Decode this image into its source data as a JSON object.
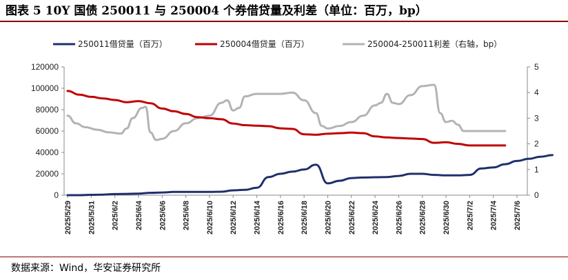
{
  "header": {
    "title": "图表 5 10Y 国债 250011 与 250004 个券借贷量及利差（单位：百万，bp）"
  },
  "footer": {
    "source": "数据来源：Wind，华安证券研究所"
  },
  "colors": {
    "s250011": "#1f2f6b",
    "s250004": "#c00000",
    "spread": "#b3b3b3",
    "rule": "#8b0000"
  },
  "chart_data": {
    "type": "line",
    "x_ticks": [
      "2025/5/29",
      "2025/5/31",
      "2025/6/2",
      "2025/6/4",
      "2025/6/6",
      "2025/6/8",
      "2025/6/10",
      "2025/6/12",
      "2025/6/14",
      "2025/6/16",
      "2025/6/18",
      "2025/6/20",
      "2025/6/22",
      "2025/6/24",
      "2025/6/26",
      "2025/6/28",
      "2025/6/30",
      "2025/7/2",
      "2025/7/4",
      "2025/7/6"
    ],
    "y_left": {
      "ticks": [
        0,
        20000,
        40000,
        60000,
        80000,
        100000,
        120000
      ],
      "ylim": [
        0,
        120000
      ]
    },
    "y_right": {
      "ticks": [
        0,
        1,
        2,
        3,
        4,
        5
      ],
      "ylim": [
        0,
        5
      ]
    },
    "grid": false,
    "legend_position": "top",
    "series": [
      {
        "name": "250011借贷量（百万）",
        "axis": "left",
        "color_key": "s250011",
        "points": [
          [
            0,
            0
          ],
          [
            1,
            0
          ],
          [
            2,
            300
          ],
          [
            3,
            500
          ],
          [
            4,
            1000
          ],
          [
            5,
            1200
          ],
          [
            6,
            1500
          ],
          [
            7,
            2200
          ],
          [
            8,
            2500
          ],
          [
            9,
            3000
          ],
          [
            10,
            3000
          ],
          [
            11,
            3000
          ],
          [
            12,
            3000
          ],
          [
            13,
            3200
          ],
          [
            14,
            4500
          ],
          [
            15,
            5000
          ],
          [
            16,
            7000
          ],
          [
            17,
            17000
          ],
          [
            18,
            20000
          ],
          [
            19,
            22000
          ],
          [
            20,
            24000
          ],
          [
            21,
            28500
          ],
          [
            22,
            11000
          ],
          [
            23,
            13500
          ],
          [
            24,
            16000
          ],
          [
            25,
            16500
          ],
          [
            26,
            16800
          ],
          [
            27,
            17000
          ],
          [
            28,
            18000
          ],
          [
            29,
            20000
          ],
          [
            30,
            20000
          ],
          [
            31,
            19000
          ],
          [
            32,
            18500
          ],
          [
            33,
            18500
          ],
          [
            34,
            19000
          ],
          [
            35,
            25000
          ],
          [
            36,
            26000
          ],
          [
            37,
            29000
          ],
          [
            38,
            32000
          ],
          [
            39,
            34000
          ],
          [
            40,
            36000
          ],
          [
            41,
            37500
          ]
        ]
      },
      {
        "name": "250004借贷量（百万）",
        "axis": "left",
        "color_key": "s250004",
        "points": [
          [
            0,
            97500
          ],
          [
            1,
            94000
          ],
          [
            2,
            92000
          ],
          [
            3,
            90500
          ],
          [
            4,
            89000
          ],
          [
            5,
            87000
          ],
          [
            6,
            88000
          ],
          [
            7,
            86000
          ],
          [
            8,
            81000
          ],
          [
            9,
            78500
          ],
          [
            10,
            76000
          ],
          [
            11,
            73000
          ],
          [
            12,
            72000
          ],
          [
            13,
            71000
          ],
          [
            14,
            67000
          ],
          [
            15,
            65500
          ],
          [
            16,
            65000
          ],
          [
            17,
            64500
          ],
          [
            18,
            62500
          ],
          [
            19,
            62000
          ],
          [
            20,
            57000
          ],
          [
            21,
            56500
          ],
          [
            22,
            57500
          ],
          [
            23,
            58000
          ],
          [
            24,
            58500
          ],
          [
            25,
            58000
          ],
          [
            26,
            55000
          ],
          [
            27,
            54000
          ],
          [
            28,
            53500
          ],
          [
            29,
            53000
          ],
          [
            30,
            52500
          ],
          [
            31,
            49000
          ],
          [
            32,
            49500
          ],
          [
            33,
            48000
          ],
          [
            34,
            46500
          ],
          [
            35,
            46500
          ],
          [
            36,
            46500
          ],
          [
            37,
            46500
          ]
        ]
      },
      {
        "name": "250004-250011利差（右轴，bp）",
        "axis": "right",
        "color_key": "spread",
        "points": [
          [
            0,
            3.1
          ],
          [
            0.7,
            2.8
          ],
          [
            1.5,
            2.65
          ],
          [
            2.5,
            2.55
          ],
          [
            3.5,
            2.45
          ],
          [
            4.5,
            2.4
          ],
          [
            5,
            2.6
          ],
          [
            5.5,
            3.0
          ],
          [
            6.3,
            3.4
          ],
          [
            6.6,
            3.45
          ],
          [
            7,
            2.45
          ],
          [
            7.5,
            2.15
          ],
          [
            8,
            2.2
          ],
          [
            9,
            2.5
          ],
          [
            10,
            2.8
          ],
          [
            11,
            3.0
          ],
          [
            12,
            3.1
          ],
          [
            13,
            3.6
          ],
          [
            13.5,
            3.7
          ],
          [
            14,
            3.3
          ],
          [
            14.5,
            3.4
          ],
          [
            15,
            3.85
          ],
          [
            16,
            3.95
          ],
          [
            17,
            3.95
          ],
          [
            18,
            3.95
          ],
          [
            19,
            4.0
          ],
          [
            20,
            3.7
          ],
          [
            21,
            3.2
          ],
          [
            21.5,
            2.7
          ],
          [
            22,
            2.6
          ],
          [
            23,
            2.7
          ],
          [
            24,
            2.85
          ],
          [
            25,
            3.1
          ],
          [
            26,
            3.5
          ],
          [
            26.5,
            3.6
          ],
          [
            27,
            3.95
          ],
          [
            27.5,
            3.6
          ],
          [
            28,
            3.55
          ],
          [
            29,
            3.9
          ],
          [
            30,
            4.25
          ],
          [
            31,
            4.3
          ],
          [
            31.5,
            3.2
          ],
          [
            32,
            2.85
          ],
          [
            32.5,
            2.9
          ],
          [
            33,
            2.75
          ],
          [
            33.5,
            2.5
          ],
          [
            34,
            2.5
          ],
          [
            35,
            2.5
          ],
          [
            36,
            2.5
          ],
          [
            37,
            2.5
          ]
        ]
      }
    ]
  }
}
